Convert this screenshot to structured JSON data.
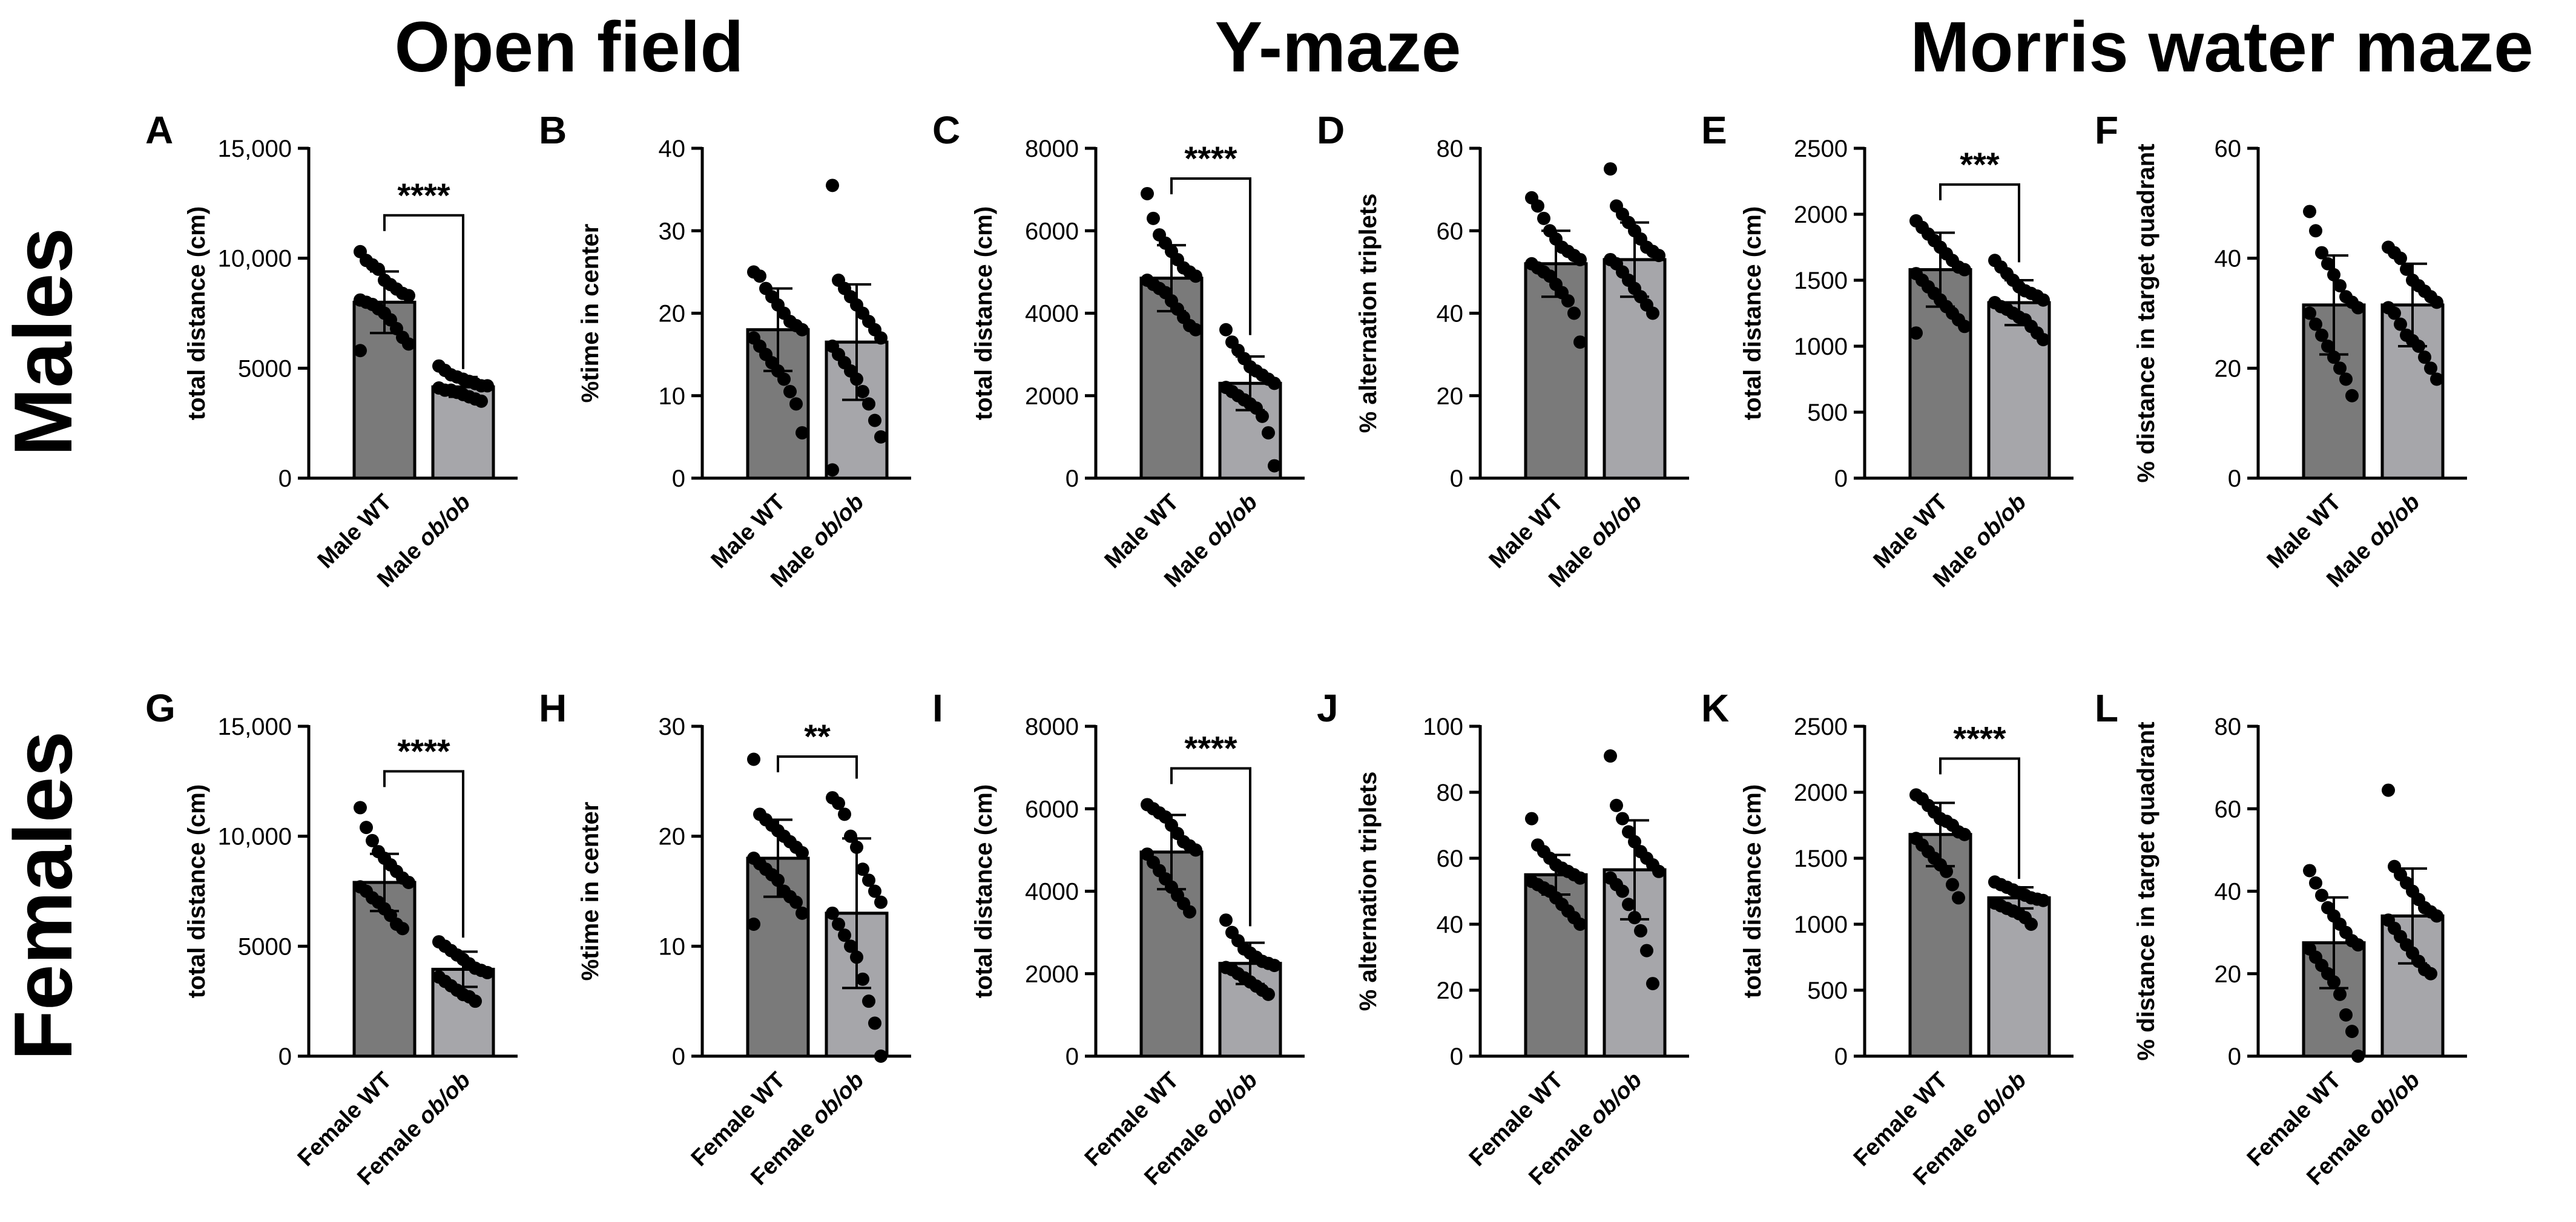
{
  "column_titles": [
    "Open field",
    "Y-maze",
    "Morris water maze"
  ],
  "row_labels": [
    "Males",
    "Females"
  ],
  "colors": {
    "wt": "#7a7a7a",
    "ob": "#a6a6aa",
    "dot": "#000000",
    "axis": "#000000"
  },
  "chart_data": [
    {
      "type": "bar",
      "letter": "A",
      "ylabel": "total distance (cm)",
      "ylim": [
        0,
        15000
      ],
      "ticks": [
        0,
        5000,
        10000,
        15000
      ],
      "tick_labels": [
        "0",
        "5000",
        "10,000",
        "15,000"
      ],
      "categories": [
        {
          "prefix": "Male",
          "genotype": "WT"
        },
        {
          "prefix": "Male",
          "genotype": "ob/ob"
        }
      ],
      "means": [
        8000,
        4150
      ],
      "sd": [
        1400,
        450
      ],
      "points": [
        [
          10300,
          9900,
          9700,
          9500,
          9000,
          8800,
          8600,
          8400,
          8300,
          8100,
          8000,
          7900,
          7700,
          7500,
          7200,
          6800,
          6400,
          6100,
          5800
        ],
        [
          5100,
          4900,
          4700,
          4600,
          4500,
          4400,
          4300,
          4200,
          4200,
          4100,
          4000,
          4000,
          3900,
          3800,
          3700,
          3600,
          3500
        ]
      ],
      "significance": "****"
    },
    {
      "type": "bar",
      "letter": "B",
      "ylabel": "%time in center",
      "ylim": [
        0,
        40
      ],
      "ticks": [
        0,
        10,
        20,
        30,
        40
      ],
      "tick_labels": [
        "0",
        "10",
        "20",
        "30",
        "40"
      ],
      "categories": [
        {
          "prefix": "Male",
          "genotype": "WT"
        },
        {
          "prefix": "Male",
          "genotype": "ob/ob"
        }
      ],
      "means": [
        18,
        16.5
      ],
      "sd": [
        5,
        7
      ],
      "points": [
        [
          25,
          24.5,
          23,
          22,
          21,
          20,
          19,
          18.5,
          18,
          17,
          16,
          15,
          14,
          13,
          12,
          10.5,
          9,
          5.5
        ],
        [
          35.5,
          24,
          23,
          22,
          21,
          20,
          19,
          18,
          17,
          16,
          15,
          14,
          13,
          12,
          10.5,
          9,
          7,
          5,
          1
        ]
      ],
      "significance": ""
    },
    {
      "type": "bar",
      "letter": "C",
      "ylabel": "total distance (cm)",
      "ylim": [
        0,
        8000
      ],
      "ticks": [
        0,
        2000,
        4000,
        6000,
        8000
      ],
      "tick_labels": [
        "0",
        "2000",
        "4000",
        "6000",
        "8000"
      ],
      "categories": [
        {
          "prefix": "Male",
          "genotype": "WT"
        },
        {
          "prefix": "Male",
          "genotype": "ob/ob"
        }
      ],
      "means": [
        4850,
        2300
      ],
      "sd": [
        800,
        650
      ],
      "points": [
        [
          6900,
          6300,
          5900,
          5700,
          5500,
          5300,
          5100,
          5000,
          4900,
          4800,
          4700,
          4600,
          4500,
          4300,
          4100,
          3900,
          3700,
          3600
        ],
        [
          3600,
          3300,
          3100,
          2900,
          2700,
          2600,
          2500,
          2400,
          2300,
          2200,
          2100,
          2000,
          1900,
          1800,
          1700,
          1500,
          1100,
          300
        ]
      ],
      "significance": "****"
    },
    {
      "type": "bar",
      "letter": "D",
      "ylabel": "% alternation triplets",
      "ylim": [
        0,
        80
      ],
      "ticks": [
        0,
        20,
        40,
        60,
        80
      ],
      "tick_labels": [
        "0",
        "20",
        "40",
        "60",
        "80"
      ],
      "categories": [
        {
          "prefix": "Male",
          "genotype": "WT"
        },
        {
          "prefix": "Male",
          "genotype": "ob/ob"
        }
      ],
      "means": [
        52,
        53
      ],
      "sd": [
        8,
        9
      ],
      "points": [
        [
          68,
          66,
          63,
          60,
          58,
          56,
          55,
          54,
          53,
          52,
          51,
          50,
          49,
          47,
          45,
          43,
          40,
          33
        ],
        [
          75,
          66,
          64,
          62,
          60,
          58,
          56,
          55,
          54,
          53,
          52,
          50,
          48,
          46,
          44,
          42,
          40
        ]
      ],
      "significance": ""
    },
    {
      "type": "bar",
      "letter": "E",
      "ylabel": "total distance (cm)",
      "ylim": [
        0,
        2500
      ],
      "ticks": [
        0,
        500,
        1000,
        1500,
        2000,
        2500
      ],
      "tick_labels": [
        "0",
        "500",
        "1000",
        "1500",
        "2000",
        "2500"
      ],
      "categories": [
        {
          "prefix": "Male",
          "genotype": "WT"
        },
        {
          "prefix": "Male",
          "genotype": "ob/ob"
        }
      ],
      "means": [
        1580,
        1330
      ],
      "sd": [
        280,
        170
      ],
      "points": [
        [
          1950,
          1900,
          1850,
          1800,
          1750,
          1700,
          1650,
          1600,
          1580,
          1550,
          1500,
          1450,
          1400,
          1350,
          1300,
          1250,
          1200,
          1150,
          1100
        ],
        [
          1650,
          1600,
          1550,
          1500,
          1450,
          1420,
          1400,
          1380,
          1350,
          1330,
          1300,
          1280,
          1250,
          1220,
          1200,
          1150,
          1100,
          1050
        ]
      ],
      "significance": "***"
    },
    {
      "type": "bar",
      "letter": "F",
      "ylabel": "% distance in target quadrant",
      "ylim": [
        0,
        60
      ],
      "ticks": [
        0,
        20,
        40,
        60
      ],
      "tick_labels": [
        "0",
        "20",
        "40",
        "60"
      ],
      "categories": [
        {
          "prefix": "Male",
          "genotype": "WT"
        },
        {
          "prefix": "Male",
          "genotype": "ob/ob"
        }
      ],
      "means": [
        31.5,
        31.5
      ],
      "sd": [
        9,
        7.5
      ],
      "points": [
        [
          48.5,
          45,
          41,
          39,
          37,
          35,
          33,
          32,
          31,
          30,
          28,
          26,
          24,
          22,
          20,
          18,
          15
        ],
        [
          42,
          41,
          40,
          38,
          36,
          35,
          34,
          33,
          32,
          31,
          30,
          28,
          26,
          25,
          24,
          22,
          20,
          18
        ]
      ],
      "significance": ""
    },
    {
      "type": "bar",
      "letter": "G",
      "ylabel": "total distance (cm)",
      "ylim": [
        0,
        15000
      ],
      "ticks": [
        0,
        5000,
        10000,
        15000
      ],
      "tick_labels": [
        "0",
        "5000",
        "10,000",
        "15,000"
      ],
      "categories": [
        {
          "prefix": "Female",
          "genotype": "WT"
        },
        {
          "prefix": "Female",
          "genotype": "ob/ob"
        }
      ],
      "means": [
        7900,
        3950
      ],
      "sd": [
        1300,
        800
      ],
      "points": [
        [
          11300,
          10400,
          9800,
          9300,
          9000,
          8700,
          8400,
          8100,
          7900,
          7700,
          7500,
          7200,
          7000,
          6700,
          6400,
          6000,
          5800
        ],
        [
          5200,
          5000,
          4800,
          4600,
          4400,
          4200,
          4000,
          3900,
          3800,
          3600,
          3400,
          3200,
          3000,
          2800,
          2700,
          2500
        ]
      ],
      "significance": "****"
    },
    {
      "type": "bar",
      "letter": "H",
      "ylabel": "%time in center",
      "ylim": [
        0,
        30
      ],
      "ticks": [
        0,
        10,
        20,
        30
      ],
      "tick_labels": [
        "0",
        "10",
        "20",
        "30"
      ],
      "categories": [
        {
          "prefix": "Female",
          "genotype": "WT"
        },
        {
          "prefix": "Female",
          "genotype": "ob/ob"
        }
      ],
      "means": [
        18,
        13
      ],
      "sd": [
        3.5,
        6.8
      ],
      "points": [
        [
          27,
          22,
          21.5,
          21,
          20.5,
          20,
          19.5,
          19,
          18.5,
          18,
          17.5,
          17,
          16.5,
          16,
          15,
          14.5,
          14,
          13,
          12
        ],
        [
          23.5,
          23,
          22,
          20,
          19,
          17,
          16,
          15,
          14,
          13,
          12,
          11,
          10,
          9,
          7,
          5,
          3,
          0
        ]
      ],
      "significance": "**"
    },
    {
      "type": "bar",
      "letter": "I",
      "ylabel": "total distance (cm)",
      "ylim": [
        0,
        8000
      ],
      "ticks": [
        0,
        2000,
        4000,
        6000,
        8000
      ],
      "tick_labels": [
        "0",
        "2000",
        "4000",
        "6000",
        "8000"
      ],
      "categories": [
        {
          "prefix": "Female",
          "genotype": "WT"
        },
        {
          "prefix": "Female",
          "genotype": "ob/ob"
        }
      ],
      "means": [
        4950,
        2250
      ],
      "sd": [
        900,
        500
      ],
      "points": [
        [
          6100,
          6000,
          5900,
          5800,
          5600,
          5400,
          5200,
          5100,
          5000,
          4900,
          4700,
          4500,
          4300,
          4100,
          3900,
          3700,
          3500
        ],
        [
          3300,
          3000,
          2800,
          2600,
          2500,
          2400,
          2300,
          2250,
          2200,
          2150,
          2100,
          2000,
          1900,
          1800,
          1700,
          1600,
          1500
        ]
      ],
      "significance": "****"
    },
    {
      "type": "bar",
      "letter": "J",
      "ylabel": "% alternation triplets",
      "ylim": [
        0,
        100
      ],
      "ticks": [
        0,
        20,
        40,
        60,
        80,
        100
      ],
      "tick_labels": [
        "0",
        "20",
        "40",
        "60",
        "80",
        "100"
      ],
      "categories": [
        {
          "prefix": "Female",
          "genotype": "WT"
        },
        {
          "prefix": "Female",
          "genotype": "ob/ob"
        }
      ],
      "means": [
        55,
        56.5
      ],
      "sd": [
        6,
        15
      ],
      "points": [
        [
          72,
          64,
          62,
          60,
          58,
          57,
          56,
          55,
          54,
          53,
          52,
          51,
          50,
          48,
          46,
          44,
          42,
          40
        ],
        [
          91,
          76,
          72,
          68,
          65,
          62,
          60,
          58,
          56,
          54,
          52,
          50,
          46,
          42,
          38,
          32,
          22
        ]
      ],
      "significance": ""
    },
    {
      "type": "bar",
      "letter": "K",
      "ylabel": "total distance (cm)",
      "ylim": [
        0,
        2500
      ],
      "ticks": [
        0,
        500,
        1000,
        1500,
        2000,
        2500
      ],
      "tick_labels": [
        "0",
        "500",
        "1000",
        "1500",
        "2000",
        "2500"
      ],
      "categories": [
        {
          "prefix": "Female",
          "genotype": "WT"
        },
        {
          "prefix": "Female",
          "genotype": "ob/ob"
        }
      ],
      "means": [
        1680,
        1200
      ],
      "sd": [
        240,
        80
      ],
      "points": [
        [
          1980,
          1950,
          1900,
          1850,
          1800,
          1780,
          1750,
          1700,
          1680,
          1650,
          1600,
          1550,
          1500,
          1450,
          1400,
          1300,
          1200
        ],
        [
          1320,
          1300,
          1280,
          1260,
          1240,
          1220,
          1200,
          1190,
          1180,
          1160,
          1140,
          1120,
          1100,
          1080,
          1050,
          1000
        ]
      ],
      "significance": "****"
    },
    {
      "type": "bar",
      "letter": "L",
      "ylabel": "% distance in target quadrant",
      "ylim": [
        0,
        80
      ],
      "ticks": [
        0,
        20,
        40,
        60,
        80
      ],
      "tick_labels": [
        "0",
        "20",
        "40",
        "60",
        "80"
      ],
      "categories": [
        {
          "prefix": "Female",
          "genotype": "WT"
        },
        {
          "prefix": "Female",
          "genotype": "ob/ob"
        }
      ],
      "means": [
        27.5,
        34
      ],
      "sd": [
        11,
        11.5
      ],
      "points": [
        [
          45,
          42,
          39,
          36,
          34,
          32,
          30,
          28,
          27,
          26,
          24,
          22,
          20,
          18,
          15,
          10,
          6,
          0
        ],
        [
          64.5,
          46,
          44,
          42,
          40,
          38,
          36,
          35,
          34,
          33,
          31,
          29,
          27,
          25,
          23,
          21,
          20
        ]
      ],
      "significance": ""
    }
  ]
}
